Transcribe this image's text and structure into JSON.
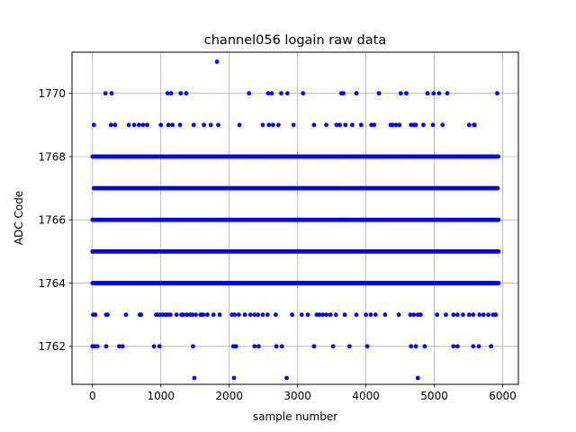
{
  "chart_data": {
    "type": "scatter",
    "title": "channel056 logain raw data",
    "xlabel": "sample number",
    "ylabel": "ADC Code",
    "xlim": [
      -300,
      6230
    ],
    "ylim": [
      1760.8,
      1771.3
    ],
    "xticks": [
      0,
      1000,
      2000,
      3000,
      4000,
      5000,
      6000
    ],
    "xtick_labels": [
      "0",
      "1000",
      "2000",
      "3000",
      "4000",
      "5000",
      "6000"
    ],
    "yticks": [
      1762,
      1764,
      1766,
      1768,
      1770
    ],
    "ytick_labels": [
      "1762",
      "1764",
      "1766",
      "1768",
      "1770"
    ],
    "grid": true,
    "marker_color": "#0000ff",
    "n_samples": 5940,
    "dense_levels": [
      {
        "y": 1764,
        "x_start": 0,
        "x_end": 5940,
        "step": 12
      },
      {
        "y": 1765,
        "x_start": 0,
        "x_end": 5940,
        "step": 12
      },
      {
        "y": 1766,
        "x_start": 0,
        "x_end": 5940,
        "step": 12
      },
      {
        "y": 1767,
        "x_start": 20,
        "x_end": 5940,
        "step": 14
      },
      {
        "y": 1768,
        "x_start": 0,
        "x_end": 5940,
        "step": 14
      }
    ],
    "sparse_points": [
      {
        "y": 1771,
        "x": [
          1820
        ]
      },
      {
        "y": 1770,
        "x": [
          190,
          280,
          1100,
          1150,
          1290,
          1370,
          2290,
          2570,
          2620,
          2760,
          2850,
          3080,
          3640,
          3670,
          3860,
          4190,
          4510,
          4590,
          4900,
          4990,
          5070,
          5190,
          5920
        ]
      },
      {
        "y": 1769,
        "x": [
          20,
          270,
          330,
          530,
          610,
          680,
          740,
          800,
          1000,
          1110,
          1170,
          1280,
          1480,
          1630,
          1730,
          1840,
          2150,
          2490,
          2580,
          2640,
          2720,
          2940,
          3240,
          3420,
          3570,
          3620,
          3700,
          3800,
          3930,
          4080,
          4120,
          4360,
          4390,
          4440,
          4490,
          4660,
          4700,
          4730,
          4840,
          4980,
          5120,
          5510,
          5580,
          5590
        ]
      },
      {
        "y": 1763,
        "x": [
          10,
          40,
          200,
          220,
          490,
          690,
          710,
          930,
          960,
          990,
          1030,
          1070,
          1100,
          1140,
          1230,
          1300,
          1330,
          1380,
          1430,
          1460,
          1510,
          1580,
          1600,
          1620,
          1680,
          1770,
          1860,
          2040,
          2080,
          2140,
          2230,
          2310,
          2370,
          2420,
          2490,
          2560,
          2680,
          2920,
          3060,
          3150,
          3280,
          3320,
          3370,
          3420,
          3480,
          3560,
          3690,
          3860,
          4000,
          4070,
          4140,
          4280,
          4480,
          4650,
          4700,
          4760,
          4800,
          5040,
          5170,
          5280,
          5340,
          5420,
          5510,
          5570,
          5660,
          5720,
          5790,
          5860,
          5900
        ]
      },
      {
        "y": 1762,
        "x": [
          0,
          30,
          70,
          200,
          390,
          440,
          900,
          980,
          1470,
          2060,
          2100,
          2370,
          2430,
          2690,
          2770,
          3240,
          3520,
          3760,
          4020,
          4660,
          4730,
          4860,
          5280,
          5340,
          5570,
          5650,
          5830
        ]
      },
      {
        "y": 1761,
        "x": [
          1490,
          2070,
          2840,
          4760
        ]
      }
    ]
  }
}
